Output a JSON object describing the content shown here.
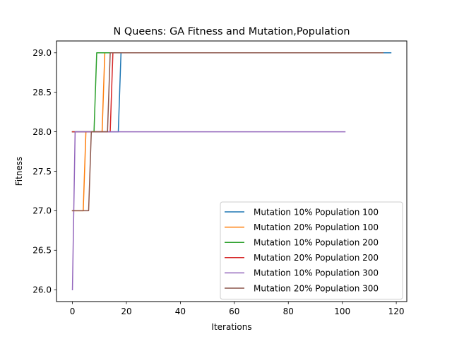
{
  "chart_data": {
    "type": "line",
    "title": "N Queens: GA Fitness and Mutation,Population",
    "xlabel": "Iterations",
    "ylabel": "Fitness",
    "xlim": [
      -5.9,
      123.9
    ],
    "ylim": [
      25.85,
      29.15
    ],
    "xticks": [
      0,
      20,
      40,
      60,
      80,
      100,
      120
    ],
    "xtick_labels": [
      "0",
      "20",
      "40",
      "60",
      "80",
      "100",
      "120"
    ],
    "yticks": [
      26.0,
      26.5,
      27.0,
      27.5,
      28.0,
      28.5,
      29.0
    ],
    "ytick_labels": [
      "26.0",
      "26.5",
      "27.0",
      "27.5",
      "28.0",
      "28.5",
      "29.0"
    ],
    "grid": false,
    "legend_position": "bottom-right",
    "series": [
      {
        "name": "Mutation 10% Population 100",
        "color": "#1f77b4",
        "points": [
          [
            0,
            28
          ],
          [
            17,
            28
          ],
          [
            18,
            29
          ],
          [
            118,
            29
          ]
        ]
      },
      {
        "name": "Mutation 20% Population 100",
        "color": "#ff7f0e",
        "points": [
          [
            0,
            27
          ],
          [
            4,
            27
          ],
          [
            5,
            28
          ],
          [
            11,
            28
          ],
          [
            12,
            29
          ],
          [
            115,
            29
          ]
        ]
      },
      {
        "name": "Mutation 10% Population 200",
        "color": "#2ca02c",
        "points": [
          [
            0,
            28
          ],
          [
            8,
            28
          ],
          [
            9,
            29
          ],
          [
            115,
            29
          ]
        ]
      },
      {
        "name": "Mutation 20% Population 200",
        "color": "#d62728",
        "points": [
          [
            0,
            28
          ],
          [
            14,
            28
          ],
          [
            15,
            29
          ],
          [
            115,
            29
          ]
        ]
      },
      {
        "name": "Mutation 10% Population 300",
        "color": "#9467bd",
        "points": [
          [
            0,
            26
          ],
          [
            1,
            28
          ],
          [
            101,
            28
          ]
        ]
      },
      {
        "name": "Mutation 20% Population 300",
        "color": "#8c564b",
        "points": [
          [
            0,
            27
          ],
          [
            6,
            27
          ],
          [
            7,
            28
          ],
          [
            13,
            28
          ],
          [
            14,
            29
          ],
          [
            115,
            29
          ]
        ]
      }
    ]
  }
}
